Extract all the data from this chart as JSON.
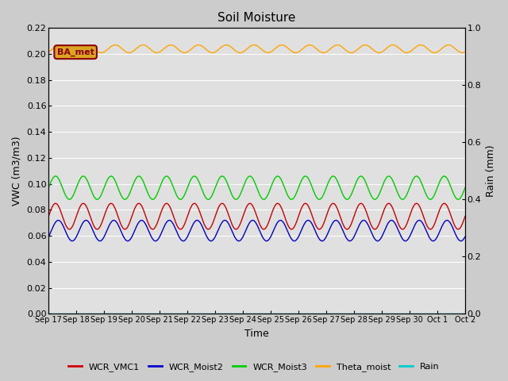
{
  "title": "Soil Moisture",
  "xlabel": "Time",
  "ylabel_left": "VWC (m3/m3)",
  "ylabel_right": "Rain (mm)",
  "background_color": "#cccccc",
  "plot_bg_color": "#e0e0e0",
  "ylim_left": [
    0.0,
    0.22
  ],
  "ylim_right": [
    0.0,
    1.0
  ],
  "x_tick_labels": [
    "Sep 17",
    "Sep 18",
    "Sep 19",
    "Sep 20",
    "Sep 21",
    "Sep 22",
    "Sep 23",
    "Sep 24",
    "Sep 25",
    "Sep 26",
    "Sep 27",
    "Sep 28",
    "Sep 29",
    "Sep 30",
    "Oct 1",
    "Oct 2"
  ],
  "annotation_text": "BA_met",
  "annotation_color": "#8b0000",
  "annotation_bg": "#daa520",
  "series": {
    "WCR_VMC1": {
      "color": "#cc0000",
      "base": 0.075,
      "amp": 0.01,
      "period": 1.0,
      "phase": 0.0
    },
    "WCR_Moist2": {
      "color": "#0000cc",
      "base": 0.064,
      "amp": 0.008,
      "period": 1.0,
      "phase": 0.2
    },
    "WCR_Moist3": {
      "color": "#00cc00",
      "base": 0.097,
      "amp": 0.009,
      "period": 1.0,
      "phase": 0.0
    },
    "Theta_moist": {
      "color": "#ffa500",
      "base": 0.204,
      "amp": 0.003,
      "period": 1.0,
      "phase": 0.3
    },
    "Rain": {
      "color": "#00cccc",
      "base": 0.0,
      "amp": 0.0,
      "period": 1.0,
      "phase": 0.0
    }
  },
  "legend_items": [
    {
      "label": "WCR_VMC1",
      "color": "#cc0000"
    },
    {
      "label": "WCR_Moist2",
      "color": "#0000cc"
    },
    {
      "label": "WCR_Moist3",
      "color": "#00cc00"
    },
    {
      "label": "Theta_moist",
      "color": "#ffa500"
    },
    {
      "label": "Rain",
      "color": "#00cccc"
    }
  ],
  "left_ticks": [
    0.0,
    0.02,
    0.04,
    0.06,
    0.08,
    0.1,
    0.12,
    0.14,
    0.16,
    0.18,
    0.2,
    0.22
  ],
  "right_ticks": [
    0.0,
    0.2,
    0.4,
    0.6,
    0.8,
    1.0
  ]
}
